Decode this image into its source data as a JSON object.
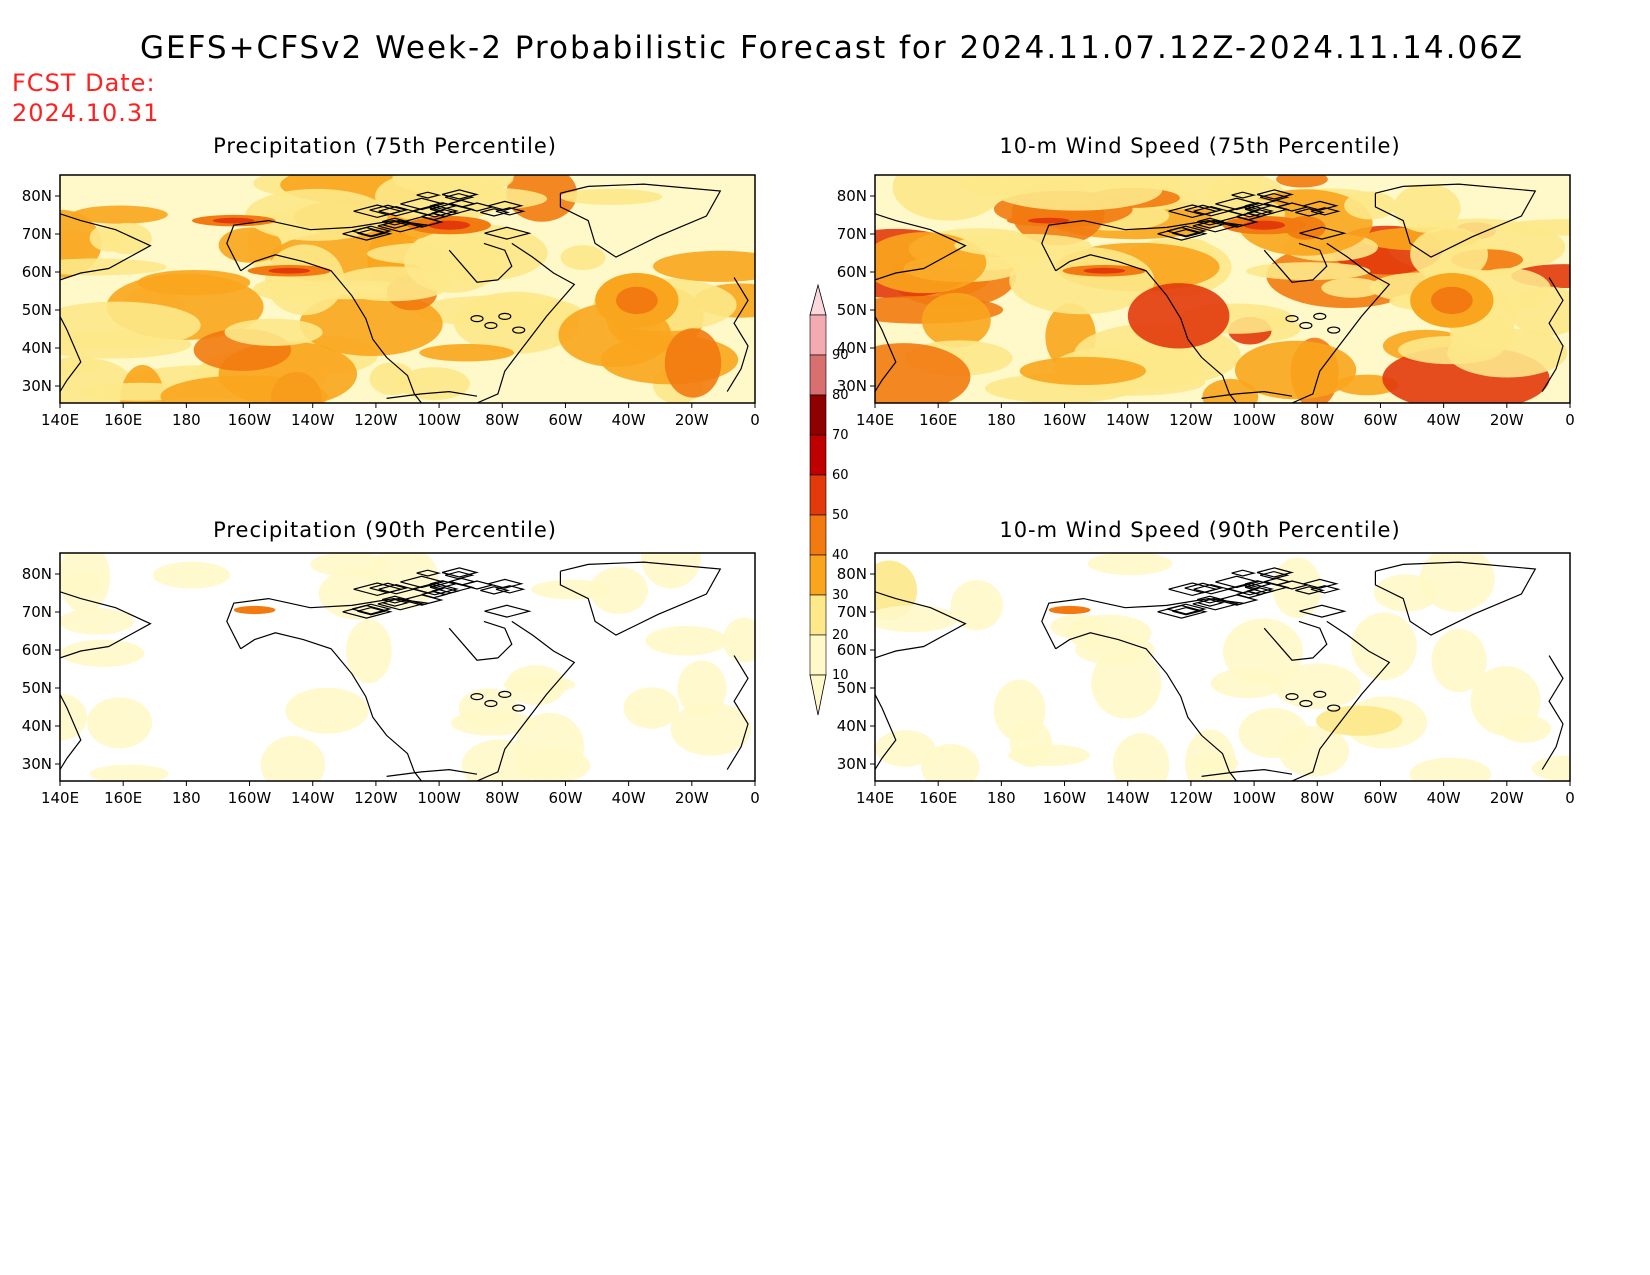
{
  "header": {
    "title": "GEFS+CFSv2 Week-2 Probabilistic Forecast for 2024.11.07.12Z-2024.11.14.06Z",
    "fcst_label": "FCST Date:",
    "fcst_date": "2024.10.31"
  },
  "panels": [
    {
      "title": "Precipitation (75th Percentile)",
      "intensity": 1.0,
      "kind": "precip"
    },
    {
      "title": "10-m Wind Speed (75th Percentile)",
      "intensity": 1.1,
      "kind": "wind"
    },
    {
      "title": "Precipitation (90th Percentile)",
      "intensity": 0.35,
      "kind": "precip"
    },
    {
      "title": "10-m Wind Speed (90th Percentile)",
      "intensity": 0.4,
      "kind": "wind"
    }
  ],
  "axes": {
    "lon_labels": [
      "140E",
      "160E",
      "180",
      "160W",
      "140W",
      "120W",
      "100W",
      "80W",
      "60W",
      "40W",
      "20W",
      "0"
    ],
    "lat_labels": [
      "80N",
      "70N",
      "60N",
      "50N",
      "40N",
      "30N"
    ]
  },
  "colorbar": {
    "levels": [
      "10",
      "20",
      "30",
      "40",
      "50",
      "60",
      "70",
      "80",
      "90"
    ],
    "colors": [
      "#fff8c8",
      "#fde88a",
      "#f9a51d",
      "#f27a10",
      "#e23a0b",
      "#c00000",
      "#8f0000",
      "#d87070",
      "#f3aab1",
      "#fbd8dc"
    ]
  }
}
